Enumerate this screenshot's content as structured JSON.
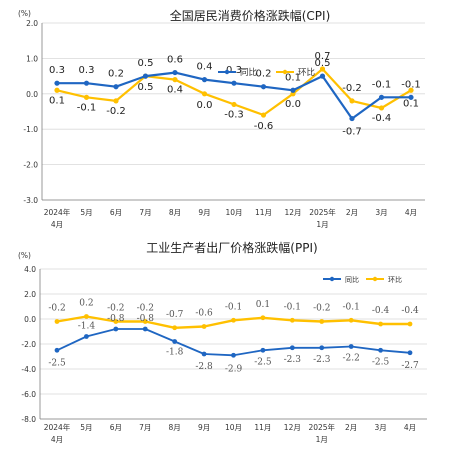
{
  "colors": {
    "yoy": "#1f66c2",
    "mom": "#ffc000",
    "grid": "#d9d9d9",
    "axis": "#7f7f7f"
  },
  "chart_data": [
    {
      "type": "line",
      "title": "全国居民消费价格涨跌幅(CPI)",
      "unit": "(%)",
      "ylim": [
        -3.0,
        2.0
      ],
      "yticks": [
        "2.0",
        "1.0",
        "0.0",
        "-1.0",
        "-2.0",
        "-3.0"
      ],
      "grid": "horizontal",
      "legend": "top-right",
      "x_labels": [
        "2024年",
        "5月",
        "6月",
        "7月",
        "8月",
        "9月",
        "10月",
        "11月",
        "12月",
        "2025年",
        "2月",
        "3月",
        "4月"
      ],
      "x_sublabels": [
        "4月",
        "",
        "",
        "",
        "",
        "",
        "",
        "",
        "",
        "1月",
        "",
        "",
        ""
      ],
      "series": [
        {
          "name": "同比",
          "values": [
            0.3,
            0.3,
            0.2,
            0.5,
            0.6,
            0.4,
            0.3,
            0.2,
            0.1,
            0.5,
            -0.7,
            -0.1,
            -0.1
          ],
          "labels": [
            "0.3",
            "0.3",
            "0.2",
            "0.5",
            "0.6",
            "0.4",
            "0.3",
            "0.2",
            "0.1",
            "0.5",
            "-0.7",
            "-0.1",
            "-0.1"
          ]
        },
        {
          "name": "环比",
          "values": [
            0.1,
            -0.1,
            -0.2,
            0.5,
            0.4,
            0.0,
            -0.3,
            -0.6,
            0.0,
            0.7,
            -0.2,
            -0.4,
            0.1
          ],
          "labels": [
            "0.1",
            "-0.1",
            "-0.2",
            "0.5",
            "0.4",
            "0.0",
            "-0.3",
            "-0.6",
            "0.0",
            "0.7",
            "-0.2",
            "-0.4",
            "0.1"
          ]
        }
      ]
    },
    {
      "type": "line",
      "title": "工业生产者出厂价格涨跌幅(PPI)",
      "unit": "(%)",
      "ylim": [
        -8.0,
        4.0
      ],
      "yticks": [
        "4.0",
        "2.0",
        "0.0",
        "-2.0",
        "-4.0",
        "-6.0",
        "-8.0"
      ],
      "grid": "horizontal",
      "legend": "top-right",
      "x_labels": [
        "2024年",
        "5月",
        "6月",
        "7月",
        "8月",
        "9月",
        "10月",
        "11月",
        "12月",
        "2025年",
        "2月",
        "3月",
        "4月"
      ],
      "x_sublabels": [
        "4月",
        "",
        "",
        "",
        "",
        "",
        "",
        "",
        "",
        "1月",
        "",
        "",
        ""
      ],
      "series": [
        {
          "name": "同比",
          "values": [
            -2.5,
            -1.4,
            -0.8,
            -0.8,
            -1.8,
            -2.8,
            -2.9,
            -2.5,
            -2.3,
            -2.3,
            -2.2,
            -2.5,
            -2.7
          ],
          "labels": [
            "-2.5",
            "-1.4",
            "-0.8",
            "-0.8",
            "-1.8",
            "-2.8",
            "-2.9",
            "-2.5",
            "-2.3",
            "-2.3",
            "-2.2",
            "-2.5",
            "-2.7"
          ]
        },
        {
          "name": "环比",
          "values": [
            -0.2,
            0.2,
            -0.2,
            -0.2,
            -0.7,
            -0.6,
            -0.1,
            0.1,
            -0.1,
            -0.2,
            -0.1,
            -0.4,
            -0.4
          ],
          "labels": [
            "-0.2",
            "0.2",
            "-0.2",
            "-0.2",
            "-0.7",
            "-0.6",
            "-0.1",
            "0.1",
            "-0.1",
            "-0.2",
            "-0.1",
            "-0.4",
            "-0.4"
          ]
        }
      ]
    }
  ]
}
